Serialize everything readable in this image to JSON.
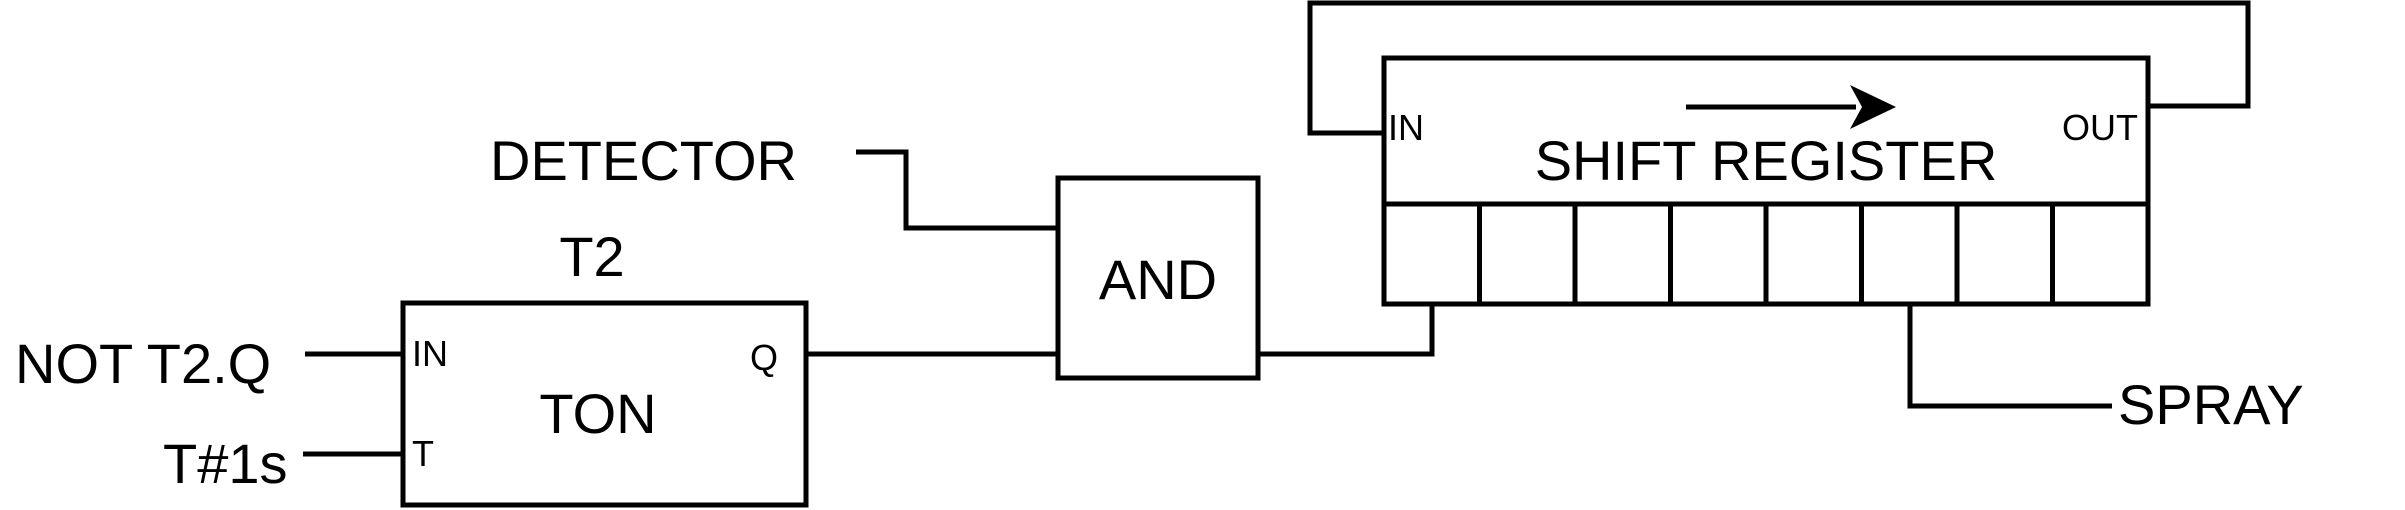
{
  "inputs": {
    "detector": "DETECTOR",
    "not_t2q": "NOT T2.Q",
    "t1s": "T#1s"
  },
  "timer": {
    "name": "T2",
    "type": "TON",
    "pin_in": "IN",
    "pin_t": "T",
    "pin_q": "Q"
  },
  "and_gate": {
    "label": "AND"
  },
  "shift_register": {
    "label": "SHIFT REGISTER",
    "pin_in": "IN",
    "pin_out": "OUT",
    "cell_count": 8,
    "direction": "arrow-right-icon"
  },
  "outputs": {
    "spray": "SPRAY"
  },
  "colors": {
    "stroke": "#000000",
    "background": "#ffffff"
  }
}
